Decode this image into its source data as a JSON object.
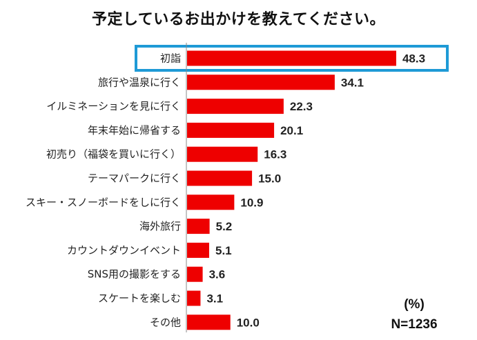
{
  "chart_data": {
    "type": "bar",
    "orientation": "horizontal",
    "title": "予定しているお出かけを教えてください。",
    "categories": [
      "初詣",
      "旅行や温泉に行く",
      "イルミネーションを見に行く",
      "年末年始に帰省する",
      "初売り（福袋を買いに行く）",
      "テーマパークに行く",
      "スキー・スノーボードをしに行く",
      "海外旅行",
      "カウントダウンイベント",
      "SNS用の撮影をする",
      "スケートを楽しむ",
      "その他"
    ],
    "values": [
      48.3,
      34.1,
      22.3,
      20.1,
      16.3,
      15.0,
      10.9,
      5.2,
      5.1,
      3.6,
      3.1,
      10.0
    ],
    "value_labels": [
      "48.3",
      "34.1",
      "22.3",
      "20.1",
      "16.3",
      "15.0",
      "10.9",
      "5.2",
      "5.1",
      "3.6",
      "3.1",
      "10.0"
    ],
    "xlim": [
      0,
      55
    ],
    "highlighted_category": "初詣",
    "unit_note": "(%)",
    "sample_note": "N=1236",
    "grid": false,
    "legend": "none"
  },
  "colors": {
    "bar": "#ee0000",
    "highlight_border": "#1e9ad6",
    "axis": "#888888"
  }
}
